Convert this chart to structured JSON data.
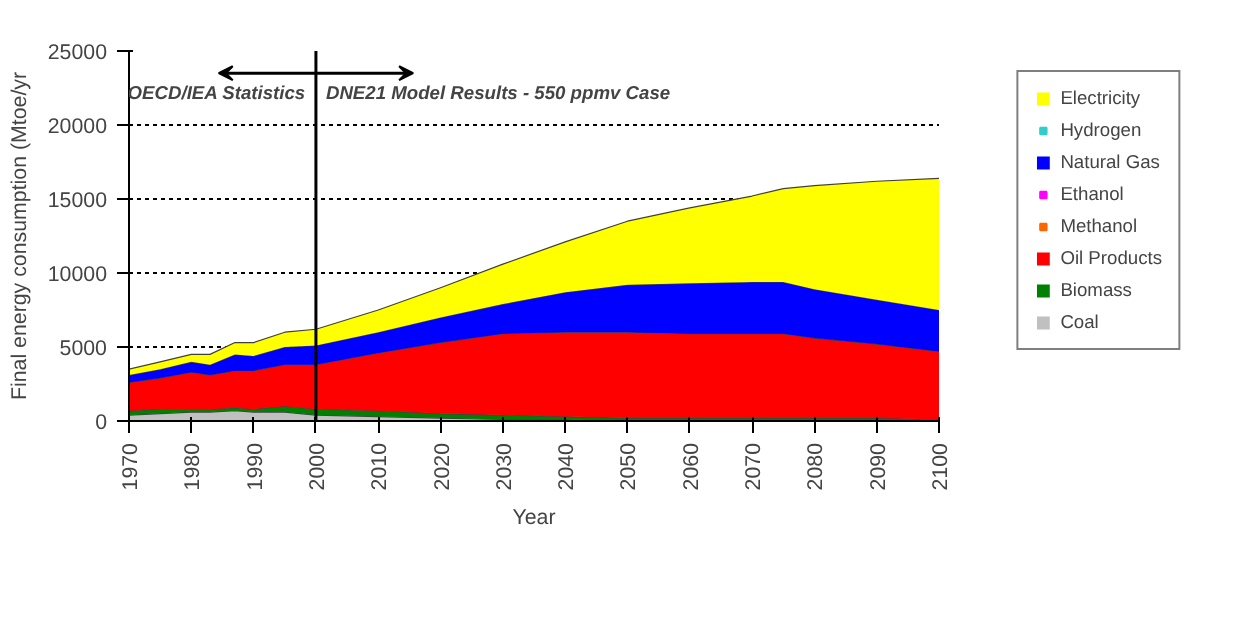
{
  "chart_data": {
    "type": "area",
    "stacked": true,
    "xlabel": "Year",
    "ylabel": "Final energy consumption (Mtoe/yr",
    "x": [
      1970,
      1975,
      1980,
      1983,
      1987,
      1990,
      1995,
      2000,
      2010,
      2020,
      2030,
      2040,
      2050,
      2060,
      2070,
      2075,
      2080,
      2090,
      2100
    ],
    "series": [
      {
        "name": "Coal",
        "color": "#c0c0c0",
        "values": [
          400,
          500,
          600,
          600,
          700,
          600,
          600,
          400,
          300,
          200,
          100,
          100,
          0,
          0,
          0,
          0,
          0,
          0,
          0
        ]
      },
      {
        "name": "Biomass",
        "color": "#008000",
        "values": [
          300,
          300,
          200,
          200,
          200,
          200,
          400,
          400,
          400,
          300,
          300,
          200,
          200,
          200,
          200,
          200,
          200,
          200,
          100
        ]
      },
      {
        "name": "Oil Products",
        "color": "#ff0000",
        "values": [
          1900,
          2100,
          2500,
          2300,
          2500,
          2600,
          2800,
          3000,
          3900,
          4800,
          5500,
          5700,
          5800,
          5700,
          5700,
          5700,
          5400,
          5000,
          4600
        ]
      },
      {
        "name": "Methanol",
        "color": "#ff6600",
        "values": [
          null,
          null,
          null,
          null,
          null,
          null,
          null,
          null,
          null,
          null,
          null,
          null,
          null,
          null,
          null,
          null,
          null,
          null,
          null
        ]
      },
      {
        "name": "Ethanol",
        "color": "#ff00ff",
        "values": [
          null,
          null,
          null,
          null,
          null,
          null,
          null,
          null,
          null,
          null,
          null,
          null,
          null,
          null,
          null,
          null,
          null,
          null,
          null
        ]
      },
      {
        "name": "Natural Gas",
        "color": "#0000ff",
        "values": [
          500,
          600,
          700,
          700,
          1100,
          1000,
          1200,
          1300,
          1400,
          1700,
          2000,
          2700,
          3200,
          3400,
          3500,
          3500,
          3300,
          3000,
          2800
        ]
      },
      {
        "name": "Hydrogen",
        "color": "#33cccc",
        "values": [
          null,
          null,
          null,
          null,
          null,
          null,
          null,
          null,
          null,
          null,
          null,
          null,
          null,
          null,
          null,
          null,
          null,
          null,
          null
        ]
      },
      {
        "name": "Electricity",
        "color": "#ffff00",
        "values": [
          400,
          500,
          500,
          700,
          800,
          900,
          1000,
          1100,
          1500,
          2000,
          2700,
          3400,
          4300,
          5100,
          5800,
          6300,
          7000,
          8000,
          8900
        ]
      }
    ],
    "xlim": [
      1970,
      2100
    ],
    "xticks": [
      1970,
      1980,
      1990,
      2000,
      2010,
      2020,
      2030,
      2040,
      2050,
      2060,
      2070,
      2080,
      2090,
      2100
    ],
    "ylim": [
      0,
      25000
    ],
    "yticks": [
      0,
      5000,
      10000,
      15000,
      20000,
      25000
    ],
    "ref_lines": [
      {
        "axis": "x",
        "value": 2000,
        "color": "#000000",
        "line_style": "solid"
      }
    ],
    "annotations": [
      "OECD/IEA Statistics",
      "DNE21 Model Results - 550 ppmv Case"
    ],
    "grid": "y",
    "legend": "right"
  }
}
